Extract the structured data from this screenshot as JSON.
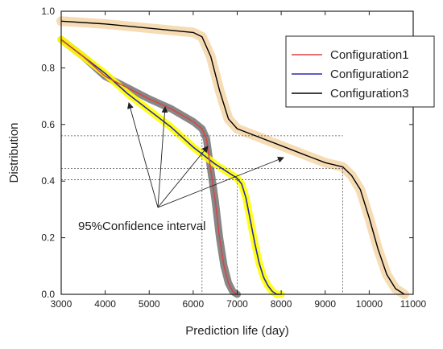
{
  "chart_data": {
    "type": "line",
    "title": "",
    "xlabel": "Prediction life (day)",
    "ylabel": "Distribution",
    "xlim": [
      3000,
      11000
    ],
    "ylim": [
      0.0,
      1.0
    ],
    "xticks": [
      "3000",
      "4000",
      "5000",
      "6000",
      "7000",
      "8000",
      "9000",
      "10000",
      "11000"
    ],
    "yticks": [
      "0.0",
      "0.2",
      "0.4",
      "0.6",
      "0.8",
      "1.0"
    ],
    "grid": false,
    "legend": "top-right",
    "series": [
      {
        "name": "Configuration1",
        "color": "#e04040",
        "band_color": "#7a7a7a",
        "x": [
          3000,
          3500,
          4000,
          4500,
          5000,
          5500,
          6000,
          6200,
          6300,
          6400,
          6500,
          6600,
          6700,
          6800,
          6900,
          7000
        ],
        "y": [
          0.9,
          0.84,
          0.77,
          0.73,
          0.69,
          0.655,
          0.61,
          0.585,
          0.55,
          0.44,
          0.33,
          0.2,
          0.1,
          0.04,
          0.01,
          0.0
        ]
      },
      {
        "name": "Configuration2",
        "color": "#2a2ab0",
        "band_color": "#ffff00",
        "x": [
          3000,
          3500,
          4000,
          4500,
          5000,
          5500,
          6000,
          6500,
          7000,
          7100,
          7200,
          7300,
          7400,
          7500,
          7600,
          7700,
          7800,
          7900,
          8000
        ],
        "y": [
          0.9,
          0.84,
          0.78,
          0.71,
          0.65,
          0.59,
          0.52,
          0.46,
          0.41,
          0.39,
          0.34,
          0.26,
          0.18,
          0.11,
          0.06,
          0.03,
          0.01,
          0.0,
          0.0
        ]
      },
      {
        "name": "Configuration3",
        "color": "#000000",
        "band_color": "#f5d6a8",
        "x": [
          3000,
          4000,
          5000,
          6000,
          6200,
          6400,
          6600,
          6800,
          7000,
          7500,
          8000,
          8500,
          9000,
          9400,
          9600,
          9800,
          10000,
          10200,
          10400,
          10600,
          10800
        ],
        "y": [
          0.965,
          0.955,
          0.94,
          0.925,
          0.91,
          0.84,
          0.72,
          0.62,
          0.585,
          0.555,
          0.525,
          0.495,
          0.465,
          0.45,
          0.42,
          0.37,
          0.27,
          0.16,
          0.07,
          0.02,
          0.0
        ]
      }
    ],
    "reference_lines": {
      "h": [
        0.56,
        0.445,
        0.405
      ],
      "v": [
        6200,
        7000,
        9400
      ]
    },
    "annotation": {
      "text": "95%Confidence interval"
    }
  }
}
